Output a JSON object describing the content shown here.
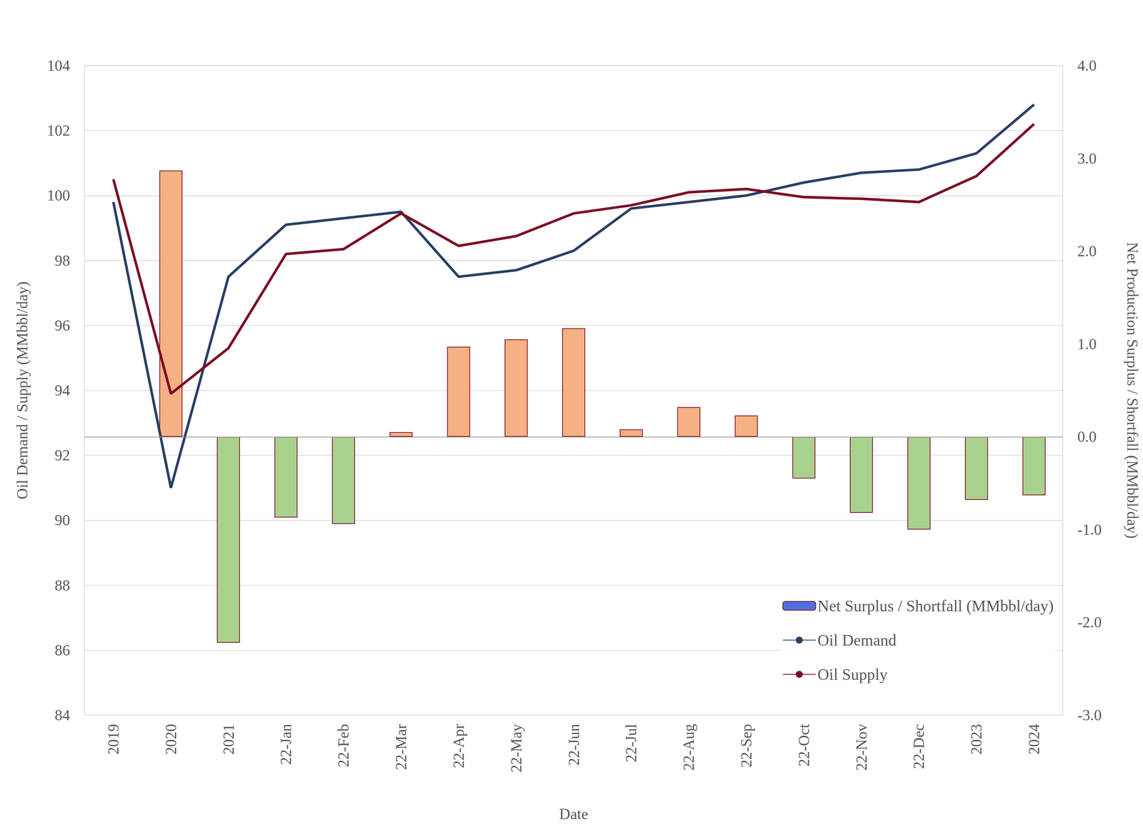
{
  "chart_data": {
    "type": "bar",
    "x_label": "Date",
    "y_label": "Oil Demand / Supply (MMbbl/day)",
    "y2_label": "Net Production Surplus / Shortfall (MMbbl/day)",
    "categories": [
      "2019",
      "2020",
      "2021",
      "22-Jan",
      "22-Feb",
      "22-Mar",
      "22-Apr",
      "22-May",
      "22-Jun",
      "22-Jul",
      "22-Aug",
      "22-Sep",
      "22-Oct",
      "22-Nov",
      "22-Dec",
      "2023",
      "2024"
    ],
    "series": [
      {
        "name": "Net Surplus / Shortfall (MMbbl/day)",
        "type": "bar",
        "axis": "y2",
        "color": "#f4b183",
        "colors": [
          null,
          "#f4b183",
          "#a9d18e",
          "#a9d18e",
          "#a9d18e",
          "#f4b183",
          "#f4b183",
          "#f4b183",
          "#f4b183",
          "#f4b183",
          "#f4b183",
          "#f4b183",
          "#a9d18e",
          "#a9d18e",
          "#a9d18e",
          "#a9d18e",
          "#a9d18e"
        ],
        "values": [
          null,
          2.87,
          -2.22,
          -0.87,
          -0.94,
          0.05,
          0.97,
          1.05,
          1.17,
          0.08,
          0.32,
          0.23,
          -0.45,
          -0.82,
          -1.0,
          -0.68,
          -0.63
        ]
      },
      {
        "name": "Oil Demand",
        "type": "line",
        "color": "#2a3f63",
        "values": [
          99.8,
          91.0,
          97.5,
          99.1,
          99.3,
          99.5,
          97.5,
          97.7,
          98.3,
          99.6,
          99.8,
          100.0,
          100.4,
          100.7,
          100.8,
          101.3,
          102.8
        ]
      },
      {
        "name": "Oil Supply",
        "type": "line",
        "color": "#7b0c25",
        "values": [
          100.5,
          93.9,
          95.3,
          98.2,
          98.35,
          99.45,
          98.45,
          98.75,
          99.45,
          99.7,
          100.1,
          100.2,
          99.95,
          99.9,
          99.8,
          100.6,
          102.2
        ]
      }
    ],
    "ylim": [
      84,
      104
    ],
    "yticks": [
      84,
      86,
      88,
      90,
      92,
      94,
      96,
      98,
      100,
      102,
      104
    ],
    "y2lim": [
      -3,
      4
    ],
    "y2ticks": [
      {
        "value": -3,
        "label": "-3.0"
      },
      {
        "value": -2,
        "label": "-2.0"
      },
      {
        "value": -1,
        "label": "-1.0"
      },
      {
        "value": 0,
        "label": "0.0"
      },
      {
        "value": 1,
        "label": "1.0"
      },
      {
        "value": 2,
        "label": "2.0"
      },
      {
        "value": 3,
        "label": "3.0"
      },
      {
        "value": 4,
        "label": "4.0"
      }
    ],
    "grid": true,
    "legend": "lower right"
  }
}
